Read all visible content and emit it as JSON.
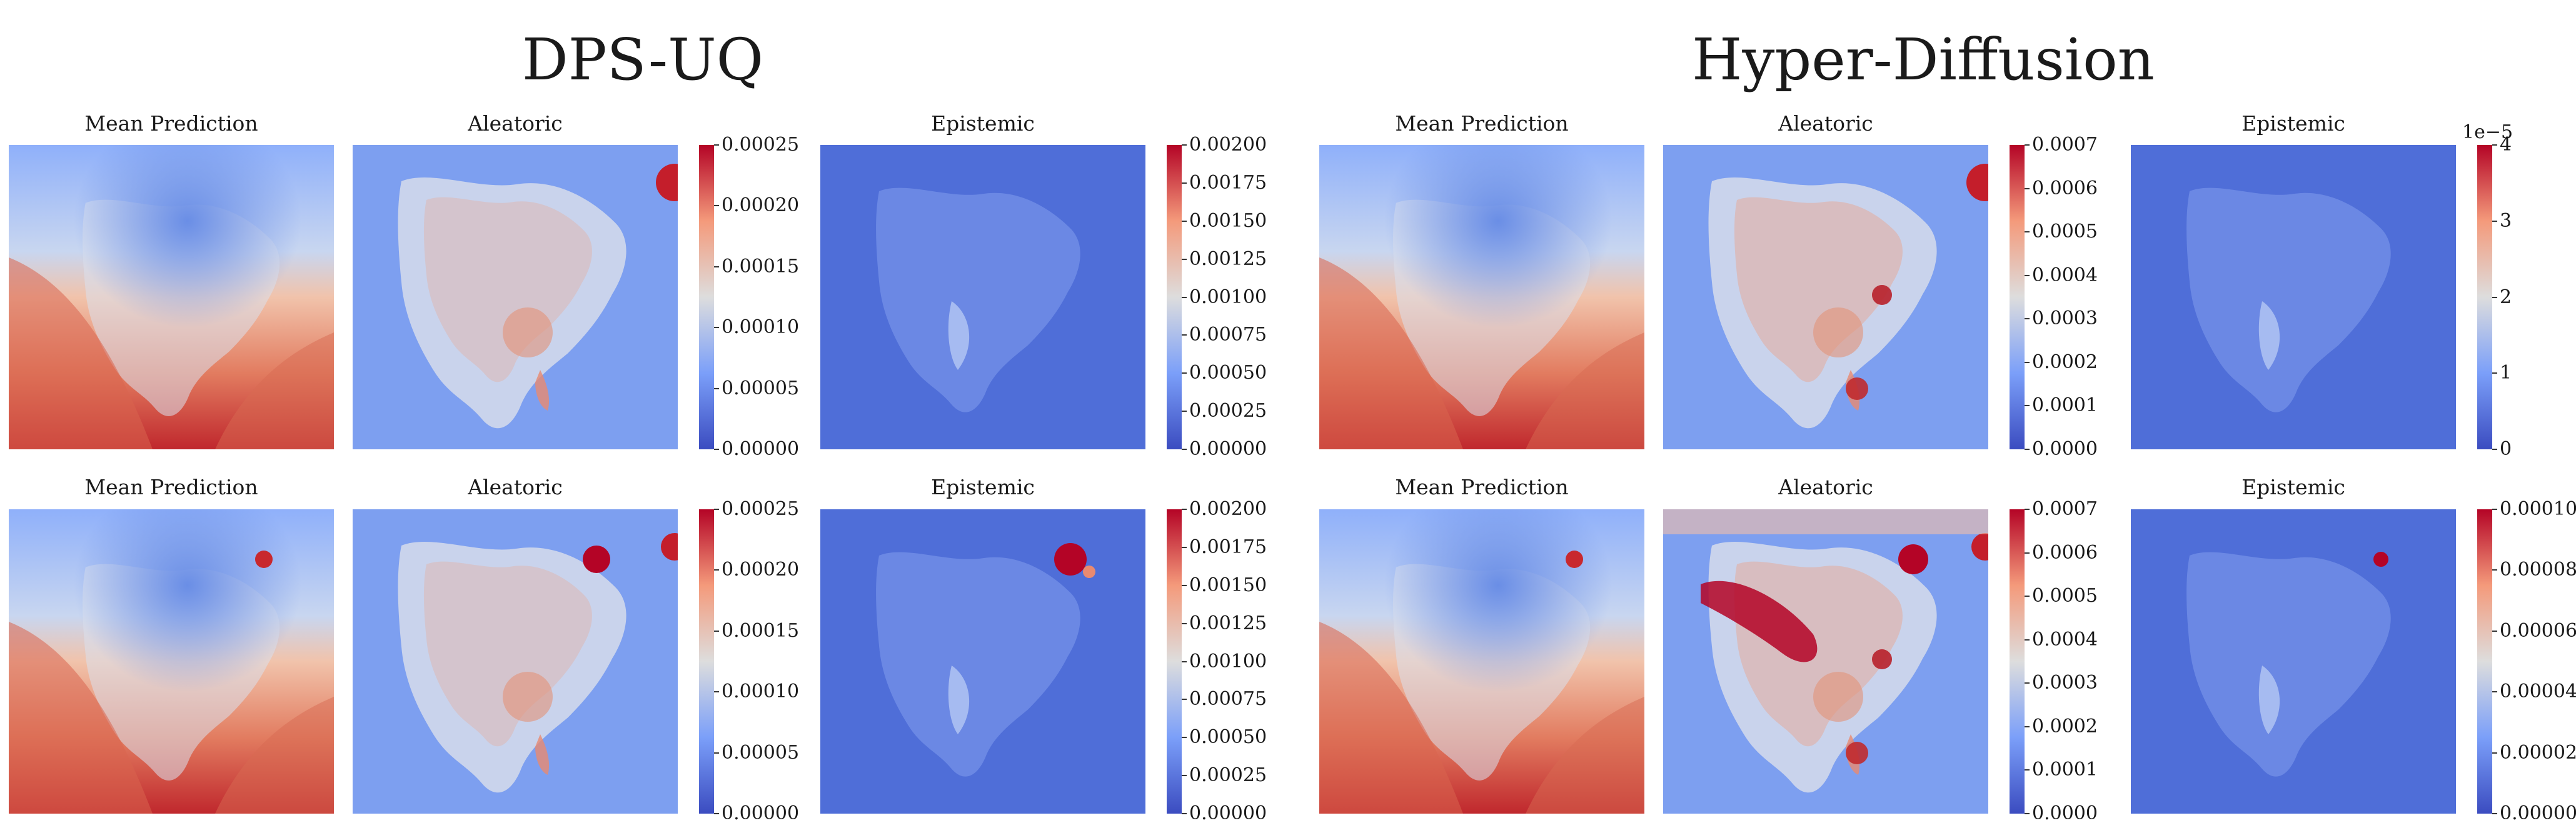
{
  "groups": [
    {
      "title": "DPS-UQ",
      "rows": [
        {
          "panels": [
            {
              "title": "Mean Prediction",
              "type": "mean"
            },
            {
              "title": "Aleatoric",
              "type": "aleatoric",
              "ticks": [
                "0.00000",
                "0.00005",
                "0.00010",
                "0.00015",
                "0.00020",
                "0.00025"
              ]
            },
            {
              "title": "Epistemic",
              "type": "epistemic",
              "ticks": [
                "0.00000",
                "0.00025",
                "0.00050",
                "0.00075",
                "0.00100",
                "0.00125",
                "0.00150",
                "0.00175",
                "0.00200"
              ]
            }
          ]
        },
        {
          "panels": [
            {
              "title": "Mean Prediction",
              "type": "mean"
            },
            {
              "title": "Aleatoric",
              "type": "aleatoric",
              "ticks": [
                "0.00000",
                "0.00005",
                "0.00010",
                "0.00015",
                "0.00020",
                "0.00025"
              ]
            },
            {
              "title": "Epistemic",
              "type": "epistemic",
              "ticks": [
                "0.00000",
                "0.00025",
                "0.00050",
                "0.00075",
                "0.00100",
                "0.00125",
                "0.00150",
                "0.00175",
                "0.00200"
              ]
            }
          ]
        }
      ]
    },
    {
      "title": "Hyper-Diffusion",
      "rows": [
        {
          "panels": [
            {
              "title": "Mean Prediction",
              "type": "mean"
            },
            {
              "title": "Aleatoric",
              "type": "aleatoric",
              "ticks": [
                "0.0000",
                "0.0001",
                "0.0002",
                "0.0003",
                "0.0004",
                "0.0005",
                "0.0006",
                "0.0007"
              ]
            },
            {
              "title": "Epistemic",
              "type": "epistemic",
              "ticks": [
                "0",
                "1",
                "2",
                "3",
                "4"
              ],
              "sci": "1e−5"
            }
          ]
        },
        {
          "panels": [
            {
              "title": "Mean Prediction",
              "type": "mean"
            },
            {
              "title": "Aleatoric",
              "type": "aleatoric",
              "ticks": [
                "0.0000",
                "0.0001",
                "0.0002",
                "0.0003",
                "0.0004",
                "0.0005",
                "0.0006",
                "0.0007"
              ]
            },
            {
              "title": "Epistemic",
              "type": "epistemic",
              "ticks": [
                "0.00000",
                "0.00002",
                "0.00004",
                "0.00006",
                "0.00008",
                "0.00010"
              ]
            }
          ]
        }
      ]
    }
  ],
  "chart_data": {
    "type": "heatmap",
    "colormap": "coolwarm",
    "colors": {
      "low": "#3b4cc0",
      "mid": "#dddddd",
      "high": "#b40426"
    },
    "groups": [
      "DPS-UQ",
      "Hyper-Diffusion"
    ],
    "panels_per_row": [
      "Mean Prediction",
      "Aleatoric",
      "Epistemic"
    ],
    "colorbar_ranges": {
      "DPS-UQ": {
        "Aleatoric": [
          0,
          0.00025
        ],
        "Epistemic": [
          0,
          0.002
        ]
      },
      "Hyper-Diffusion": {
        "Aleatoric": [
          0,
          0.0007
        ],
        "Epistemic_row1": [
          0,
          4e-05
        ],
        "Epistemic_row2": [
          0,
          0.0001
        ]
      }
    }
  }
}
